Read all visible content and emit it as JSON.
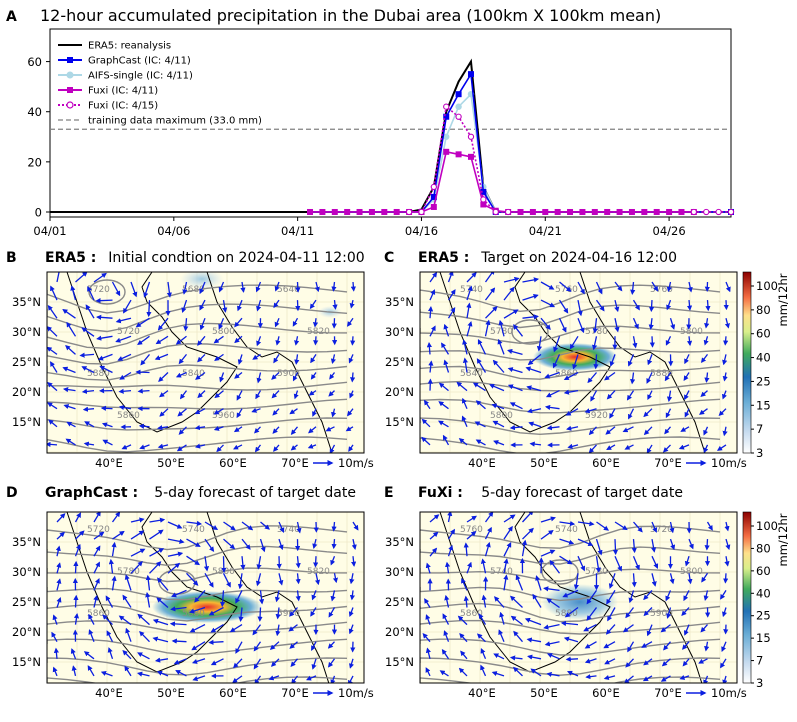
{
  "figure": {
    "panel_letters": [
      "A",
      "B",
      "C",
      "D",
      "E"
    ]
  },
  "chart_data": [
    {
      "type": "line",
      "panel": "A",
      "title": "12-hour accumulated precipitation in the Dubai area (100km  X 100km  mean)",
      "xlabel": "",
      "ylabel": "",
      "xticks": [
        "04/01",
        "04/06",
        "04/11",
        "04/16",
        "04/21",
        "04/26"
      ],
      "xlim": [
        0,
        27.5
      ],
      "ylim": [
        -2,
        73
      ],
      "yticks": [
        0,
        20,
        40,
        60
      ],
      "threshold": {
        "label": "training data maximum (33.0 mm)",
        "value": 33.0
      },
      "series": [
        {
          "name": "ERA5: reanalysis",
          "color": "#000000",
          "x": [
            0,
            14.5,
            15.0,
            15.5,
            16.0,
            16.5,
            17.0,
            17.5,
            18.0,
            27.5
          ],
          "values": [
            0,
            0,
            1,
            10,
            40,
            52,
            60,
            10,
            0,
            0
          ]
        },
        {
          "name": "GraphCast (IC: 4/11)",
          "color": "#0000ee",
          "x": [
            10.5,
            15.0,
            15.5,
            16.0,
            16.5,
            17.0,
            17.5,
            18.0,
            27.5
          ],
          "values": [
            0,
            0,
            6,
            38,
            47,
            55,
            8,
            0,
            0
          ]
        },
        {
          "name": "AIFS-single (IC: 4/11)",
          "color": "#add8e6",
          "x": [
            10.5,
            15.0,
            15.5,
            16.0,
            16.5,
            17.0,
            17.5,
            18.0,
            27.5
          ],
          "values": [
            0,
            0,
            5,
            30,
            42,
            47,
            10,
            0,
            0
          ]
        },
        {
          "name": "Fuxi (IC: 4/11)",
          "color": "#c000c0",
          "x": [
            10.5,
            11,
            11.5,
            12,
            12.5,
            13,
            13.5,
            14,
            14.5,
            15,
            15.5,
            16,
            16.5,
            17,
            17.5,
            18,
            18.5,
            19,
            19.5,
            20,
            20.5,
            21,
            21.5,
            22,
            22.5,
            23,
            23.5,
            24,
            24.5,
            25,
            25.5,
            26
          ],
          "values": [
            0,
            0,
            0,
            0,
            0,
            0,
            0,
            0,
            0,
            0,
            2,
            24,
            23,
            22,
            3,
            0.5,
            0,
            0,
            0,
            0,
            0,
            0,
            0,
            0,
            0,
            0,
            0,
            0,
            0,
            0,
            0,
            0
          ]
        },
        {
          "name": "Fuxi (IC: 4/15)",
          "color": "#c000c0",
          "x": [
            14.5,
            15,
            15.5,
            16,
            16.5,
            17,
            17.5,
            18,
            18.5,
            26,
            26.5,
            27,
            27.5
          ],
          "values": [
            0,
            0,
            10,
            42,
            38,
            30,
            5,
            0,
            0,
            0,
            0,
            0,
            0
          ]
        }
      ]
    },
    {
      "type": "map",
      "panel": "B",
      "source": "ERA5 :",
      "title": "Initial condtion on 2024-04-11 12:00",
      "lon_ticks": [
        "40°E",
        "50°E",
        "60°E",
        "70°E"
      ],
      "lat_ticks": [
        "35°N",
        "30°N",
        "25°N",
        "20°N",
        "15°N"
      ],
      "vector_scale": "10m/s",
      "contour_labels": [
        "5720",
        "5680",
        "5640",
        "5720",
        "5800",
        "5820",
        "5880",
        "5840",
        "5900",
        "5860",
        "5960"
      ]
    },
    {
      "type": "map",
      "panel": "C",
      "source": "ERA5 :",
      "title": "Target on 2024-04-16 12:00",
      "lon_ticks": [
        "40°E",
        "50°E",
        "60°E",
        "70°E"
      ],
      "lat_ticks": [
        "35°N",
        "30°N",
        "25°N",
        "20°N",
        "15°N"
      ],
      "vector_scale": "10m/s",
      "contour_labels": [
        "5740",
        "5760",
        "5760",
        "5780",
        "5780",
        "5800",
        "5840",
        "5860",
        "5880",
        "5800",
        "5920"
      ],
      "colorbar": {
        "label": "mm/12hr",
        "ticks": [
          "100",
          "80",
          "60",
          "40",
          "25",
          "15",
          "7",
          "3"
        ]
      }
    },
    {
      "type": "map",
      "panel": "D",
      "source": "GraphCast :",
      "title": "5-day forecast of target date",
      "lon_ticks": [
        "40°E",
        "50°E",
        "60°E",
        "70°E"
      ],
      "lat_ticks": [
        "35°N",
        "30°N",
        "25°N",
        "20°N",
        "15°N"
      ],
      "vector_scale": "10m/s",
      "contour_labels": [
        "5720",
        "5740",
        "5740",
        "5780",
        "5800",
        "5820",
        "5860",
        "5880",
        "5900"
      ]
    },
    {
      "type": "map",
      "panel": "E",
      "source": "FuXi :",
      "title": "5-day forecast of target date",
      "lon_ticks": [
        "40°E",
        "50°E",
        "60°E",
        "70°E"
      ],
      "lat_ticks": [
        "35°N",
        "30°N",
        "25°N",
        "20°N",
        "15°N"
      ],
      "vector_scale": "10m/s",
      "contour_labels": [
        "5760",
        "5740",
        "5720",
        "5740",
        "5780",
        "5800",
        "5860",
        "5880",
        "5900"
      ],
      "colorbar": {
        "label": "mm/12hr",
        "ticks": [
          "100",
          "80",
          "60",
          "40",
          "25",
          "15",
          "7",
          "3"
        ]
      }
    }
  ]
}
